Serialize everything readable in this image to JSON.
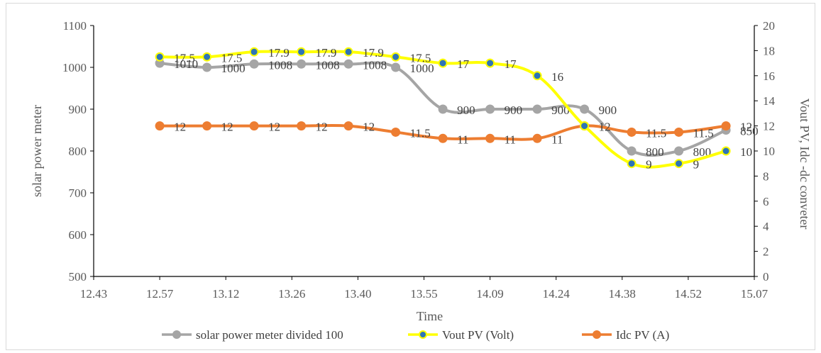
{
  "chart_data": {
    "type": "line",
    "title": "",
    "xlabel": "Time",
    "ylabel": "solar power meter",
    "y2label": "Vout PV, Idc -dc conveter",
    "categories": [
      "12.43",
      "12.57",
      "13.12",
      "13.26",
      "13.40",
      "13.55",
      "14.09",
      "14.24",
      "14.38",
      "14.52",
      "15.07"
    ],
    "ylim": [
      500,
      1100
    ],
    "yticks": [
      "500",
      "600",
      "700",
      "800",
      "900",
      "1000",
      "1100"
    ],
    "y2lim": [
      0,
      20
    ],
    "y2ticks": [
      "0",
      "2",
      "4",
      "6",
      "8",
      "10",
      "12",
      "14",
      "16",
      "18",
      "20"
    ],
    "x": [
      12.57,
      12.67,
      12.77,
      12.87,
      12.97,
      13.07,
      13.17,
      13.27,
      13.37,
      13.47,
      13.57,
      13.67,
      13.77
    ],
    "series": [
      {
        "name": "solar power meter divided 100",
        "axis": "left",
        "color": "#a5a5a5",
        "marker_color": "#a5a5a5",
        "values": [
          1010,
          1000,
          1008,
          1008,
          1008,
          1000,
          900,
          900,
          900,
          900,
          800,
          800,
          850
        ],
        "labels": [
          "1010",
          "1000",
          "1008",
          "1008",
          "1008",
          "1000",
          "900",
          "900",
          "900",
          "900",
          "800",
          "800",
          "850"
        ]
      },
      {
        "name": "Vout  PV (Volt)",
        "axis": "right",
        "color": "#ffff00",
        "marker_color": "#2e75b6",
        "values": [
          17.5,
          17.5,
          17.9,
          17.9,
          17.9,
          17.5,
          17,
          17,
          16,
          12,
          9,
          9,
          10
        ],
        "labels": [
          "17.5",
          "17.5",
          "17.9",
          "17.9",
          "17.9",
          "17.5",
          "17",
          "17",
          "16",
          "",
          "9",
          "9",
          "10"
        ]
      },
      {
        "name": "Idc PV (A)",
        "axis": "right",
        "color": "#ed7d31",
        "marker_color": "#ed7d31",
        "values": [
          12,
          12,
          12,
          12,
          12,
          11.5,
          11,
          11,
          11,
          12,
          11.5,
          11.5,
          12
        ],
        "labels": [
          "12",
          "12",
          "12",
          "12",
          "12",
          "11.5",
          "11",
          "11",
          "11",
          "12",
          "11.5",
          "11.5",
          "12"
        ]
      }
    ],
    "grid": false,
    "legend": "bottom"
  }
}
